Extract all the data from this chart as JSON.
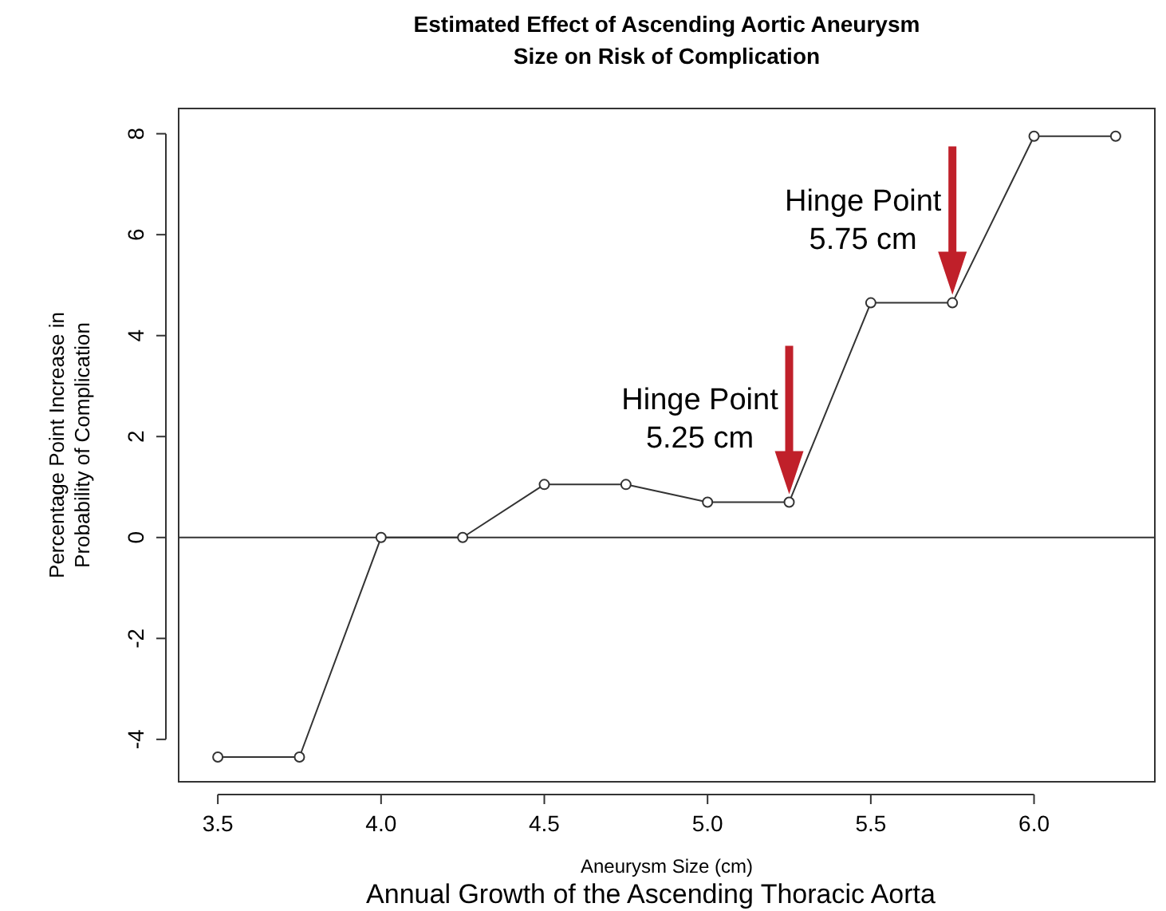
{
  "chart_data": {
    "type": "line",
    "title": "Estimated Effect of Ascending Aortic Aneurysm\nSize on Risk of Complication",
    "xlabel": "Aneurysm Size (cm)",
    "ylabel": "Percentage Point Increase in\nProbability of Complication",
    "x": [
      3.5,
      3.75,
      4.0,
      4.25,
      4.5,
      4.75,
      5.0,
      5.25,
      5.5,
      5.75,
      6.0,
      6.25
    ],
    "series": [
      {
        "color": "#333333",
        "values": [
          -4.35,
          -4.35,
          0,
          0,
          1.05,
          1.05,
          0.7,
          0.7,
          4.65,
          4.65,
          7.95,
          7.95
        ]
      }
    ],
    "xlim": [
      3.38,
      6.37
    ],
    "xticks": [
      {
        "value": 3.5,
        "label": "3.5"
      },
      {
        "value": 4.0,
        "label": "4.0"
      },
      {
        "value": 4.5,
        "label": "4.5"
      },
      {
        "value": 5.0,
        "label": "5.0"
      },
      {
        "value": 5.5,
        "label": "5.5"
      },
      {
        "value": 6.0,
        "label": "6.0"
      }
    ],
    "ylim": [
      -4.84,
      8.5
    ],
    "yticks": [
      -4,
      -2,
      0,
      2,
      4,
      6,
      8
    ],
    "ref_lines": [
      {
        "axis": "y",
        "value": 0,
        "color": "#333333"
      }
    ],
    "annotations": [
      {
        "text": "Hinge Point\n5.25 cm",
        "x": 5.25,
        "y": 0.7
      },
      {
        "text": "Hinge Point\n5.75 cm",
        "x": 5.75,
        "y": 4.65
      },
      "Annual Growth of the Ascending Thoracic Aorta"
    ],
    "marker": "circle",
    "grid": false
  }
}
